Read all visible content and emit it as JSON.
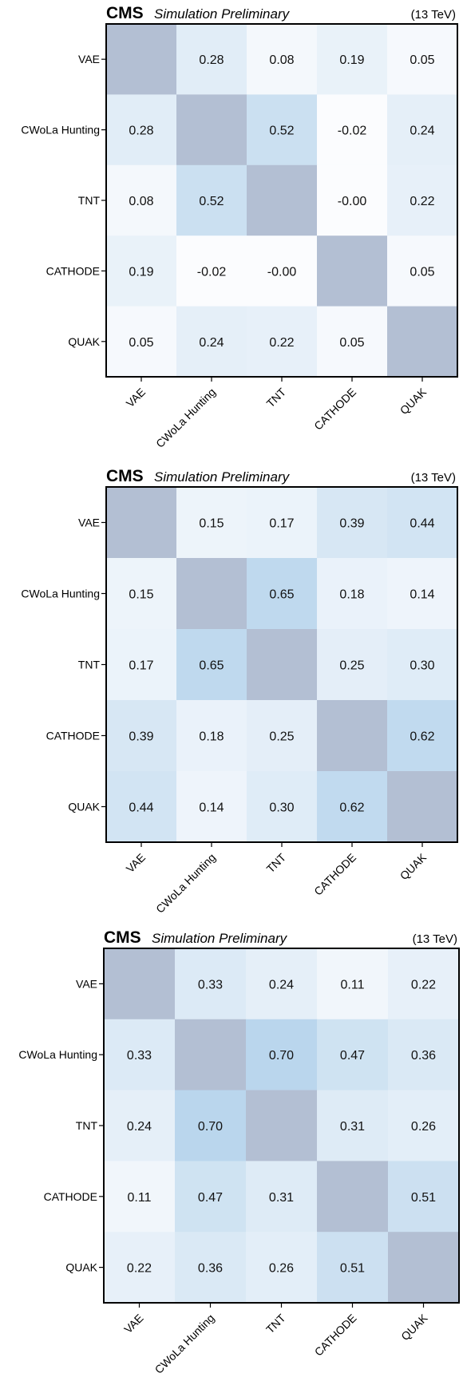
{
  "colors": {
    "diagonal": "#b3bfd3",
    "low": "#fbfcfe",
    "high": "#b8d5ec",
    "frame": "#000000"
  },
  "chart_data": [
    {
      "type": "heatmap",
      "experiment": "CMS",
      "label": "Simulation Preliminary",
      "energy": "(13 TeV)",
      "categories": [
        "VAE",
        "CWoLa Hunting",
        "TNT",
        "CATHODE",
        "QUAK"
      ],
      "matrix": [
        [
          null,
          0.28,
          0.08,
          0.19,
          0.05
        ],
        [
          0.28,
          null,
          0.52,
          -0.02,
          0.24
        ],
        [
          0.08,
          0.52,
          null,
          -0.0,
          0.22
        ],
        [
          0.19,
          -0.02,
          -0.0,
          null,
          0.05
        ],
        [
          0.05,
          0.24,
          0.22,
          0.05,
          null
        ]
      ],
      "labels": [
        [
          "",
          "0.28",
          "0.08",
          "0.19",
          "0.05"
        ],
        [
          "0.28",
          "",
          "0.52",
          "-0.02",
          "0.24"
        ],
        [
          "0.08",
          "0.52",
          "",
          "-0.00",
          "0.22"
        ],
        [
          "0.19",
          "-0.02",
          "-0.00",
          "",
          "0.05"
        ],
        [
          "0.05",
          "0.24",
          "0.22",
          "0.05",
          ""
        ]
      ]
    },
    {
      "type": "heatmap",
      "experiment": "CMS",
      "label": "Simulation Preliminary",
      "energy": "(13 TeV)",
      "categories": [
        "VAE",
        "CWoLa Hunting",
        "TNT",
        "CATHODE",
        "QUAK"
      ],
      "matrix": [
        [
          null,
          0.15,
          0.17,
          0.39,
          0.44
        ],
        [
          0.15,
          null,
          0.65,
          0.18,
          0.14
        ],
        [
          0.17,
          0.65,
          null,
          0.25,
          0.3
        ],
        [
          0.39,
          0.18,
          0.25,
          null,
          0.62
        ],
        [
          0.44,
          0.14,
          0.3,
          0.62,
          null
        ]
      ],
      "labels": [
        [
          "",
          "0.15",
          "0.17",
          "0.39",
          "0.44"
        ],
        [
          "0.15",
          "",
          "0.65",
          "0.18",
          "0.14"
        ],
        [
          "0.17",
          "0.65",
          "",
          "0.25",
          "0.30"
        ],
        [
          "0.39",
          "0.18",
          "0.25",
          "",
          "0.62"
        ],
        [
          "0.44",
          "0.14",
          "0.30",
          "0.62",
          ""
        ]
      ]
    },
    {
      "type": "heatmap",
      "experiment": "CMS",
      "label": "Simulation Preliminary",
      "energy": "(13 TeV)",
      "categories": [
        "VAE",
        "CWoLa Hunting",
        "TNT",
        "CATHODE",
        "QUAK"
      ],
      "matrix": [
        [
          null,
          0.33,
          0.24,
          0.11,
          0.22
        ],
        [
          0.33,
          null,
          0.7,
          0.47,
          0.36
        ],
        [
          0.24,
          0.7,
          null,
          0.31,
          0.26
        ],
        [
          0.11,
          0.47,
          0.31,
          null,
          0.51
        ],
        [
          0.22,
          0.36,
          0.26,
          0.51,
          null
        ]
      ],
      "labels": [
        [
          "",
          "0.33",
          "0.24",
          "0.11",
          "0.22"
        ],
        [
          "0.33",
          "",
          "0.70",
          "0.47",
          "0.36"
        ],
        [
          "0.24",
          "0.70",
          "",
          "0.31",
          "0.26"
        ],
        [
          "0.11",
          "0.47",
          "0.31",
          "",
          "0.51"
        ],
        [
          "0.22",
          "0.36",
          "0.26",
          "0.51",
          ""
        ]
      ]
    }
  ]
}
